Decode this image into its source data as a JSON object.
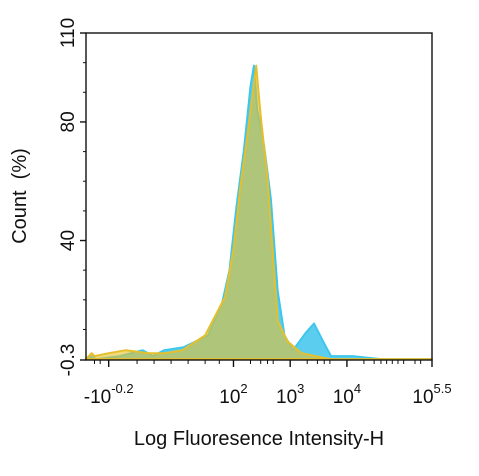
{
  "chart_data": {
    "type": "area",
    "xlabel": "Log Fluoresence Intensity-H",
    "ylabel": "Count  (%)",
    "ylim": [
      -0.3,
      110
    ],
    "x_scale": "biexponential",
    "xlim": [
      -0.6,
      5.5
    ],
    "y_ticks": [
      {
        "value": -0.3,
        "label": "-0.3"
      },
      {
        "value": 40,
        "label": "40"
      },
      {
        "value": 80,
        "label": "80"
      },
      {
        "value": 110,
        "label": "110"
      }
    ],
    "x_ticks": [
      {
        "value": -0.2,
        "base": "-10",
        "exp": "-0.2"
      },
      {
        "value": 2,
        "base": "10",
        "exp": "2"
      },
      {
        "value": 3,
        "base": "10",
        "exp": "3"
      },
      {
        "value": 4,
        "base": "10",
        "exp": "4"
      },
      {
        "value": 5.5,
        "base": "10",
        "exp": "5.5"
      }
    ],
    "series": [
      {
        "color": "#3ec6ec",
        "fill_opacity": 0.85,
        "points": [
          [
            -0.6,
            0
          ],
          [
            -0.5,
            1
          ],
          [
            -0.42,
            0
          ],
          [
            0.0,
            1
          ],
          [
            0.4,
            3
          ],
          [
            0.58,
            1
          ],
          [
            0.78,
            3
          ],
          [
            1.12,
            4
          ],
          [
            1.55,
            8
          ],
          [
            1.8,
            19
          ],
          [
            1.93,
            30
          ],
          [
            2.05,
            51
          ],
          [
            2.18,
            70
          ],
          [
            2.3,
            92
          ],
          [
            2.36,
            99
          ],
          [
            2.42,
            84
          ],
          [
            2.54,
            72
          ],
          [
            2.66,
            54
          ],
          [
            2.78,
            23
          ],
          [
            2.9,
            8
          ],
          [
            3.05,
            3
          ],
          [
            3.28,
            9
          ],
          [
            3.42,
            12
          ],
          [
            3.58,
            6
          ],
          [
            3.72,
            1
          ],
          [
            4.1,
            1
          ],
          [
            4.6,
            0
          ],
          [
            5.5,
            0
          ]
        ]
      },
      {
        "color": "#e6bf2c",
        "fill_opacity": 0.6,
        "points": [
          [
            -0.6,
            0
          ],
          [
            -0.5,
            2
          ],
          [
            -0.45,
            1
          ],
          [
            -0.2,
            2
          ],
          [
            0.1,
            3
          ],
          [
            0.5,
            2
          ],
          [
            0.8,
            2
          ],
          [
            1.1,
            3
          ],
          [
            1.5,
            8
          ],
          [
            1.85,
            21
          ],
          [
            2.0,
            37
          ],
          [
            2.12,
            58
          ],
          [
            2.27,
            79
          ],
          [
            2.4,
            99
          ],
          [
            2.48,
            82
          ],
          [
            2.6,
            61
          ],
          [
            2.7,
            34
          ],
          [
            2.78,
            13
          ],
          [
            2.95,
            6
          ],
          [
            3.2,
            2
          ],
          [
            3.45,
            1
          ],
          [
            3.7,
            0
          ],
          [
            5.5,
            0
          ]
        ]
      }
    ]
  }
}
